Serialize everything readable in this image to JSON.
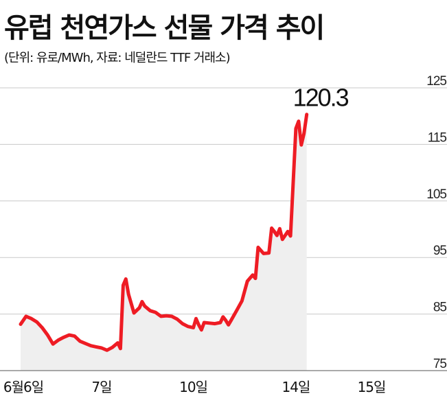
{
  "title": "유럽 천연가스 선물 가격 추이",
  "subtitle": "(단위: 유로/MWh, 자료: 네덜란드 TTF 거래소)",
  "chart_data": {
    "type": "area",
    "title": "유럽 천연가스 선물 가격 추이",
    "xlabel": "",
    "ylabel": "",
    "ylim": [
      75,
      125
    ],
    "yticks": [
      "125",
      "115",
      "105",
      "95",
      "85",
      "75"
    ],
    "grid": true,
    "x_labels": [
      "6월6일",
      "7일",
      "10일",
      "14일",
      "15일"
    ],
    "x_label_positions": [
      0,
      15,
      32,
      51,
      65
    ],
    "highlight_label": "120.3",
    "series": [
      {
        "color": "#ee1c24",
        "fill": "#efefef",
        "values": [
          {
            "x": 0,
            "y": 83.2
          },
          {
            "x": 1,
            "y": 84.6
          },
          {
            "x": 2,
            "y": 84.2
          },
          {
            "x": 3,
            "y": 83.6
          },
          {
            "x": 4,
            "y": 82.6
          },
          {
            "x": 5,
            "y": 81.3
          },
          {
            "x": 6,
            "y": 79.7
          },
          {
            "x": 7,
            "y": 80.4
          },
          {
            "x": 8,
            "y": 80.9
          },
          {
            "x": 9,
            "y": 81.3
          },
          {
            "x": 10,
            "y": 81.1
          },
          {
            "x": 11,
            "y": 80.2
          },
          {
            "x": 12,
            "y": 79.8
          },
          {
            "x": 13,
            "y": 79.4
          },
          {
            "x": 14,
            "y": 79.2
          },
          {
            "x": 15,
            "y": 79.0
          },
          {
            "x": 16,
            "y": 78.6
          },
          {
            "x": 17,
            "y": 79.1
          },
          {
            "x": 18,
            "y": 79.9
          },
          {
            "x": 18.5,
            "y": 78.9
          },
          {
            "x": 19,
            "y": 90.1
          },
          {
            "x": 19.5,
            "y": 91.2
          },
          {
            "x": 20,
            "y": 88.5
          },
          {
            "x": 21,
            "y": 85.2
          },
          {
            "x": 22,
            "y": 86.1
          },
          {
            "x": 22.5,
            "y": 87.2
          },
          {
            "x": 23,
            "y": 86.4
          },
          {
            "x": 24,
            "y": 85.6
          },
          {
            "x": 25,
            "y": 85.3
          },
          {
            "x": 26,
            "y": 84.6
          },
          {
            "x": 27,
            "y": 84.7
          },
          {
            "x": 28,
            "y": 84.6
          },
          {
            "x": 29,
            "y": 84.1
          },
          {
            "x": 30,
            "y": 83.3
          },
          {
            "x": 31,
            "y": 82.8
          },
          {
            "x": 32,
            "y": 82.6
          },
          {
            "x": 32.5,
            "y": 84.2
          },
          {
            "x": 33,
            "y": 83.1
          },
          {
            "x": 33.5,
            "y": 82.2
          },
          {
            "x": 34,
            "y": 83.5
          },
          {
            "x": 35,
            "y": 83.4
          },
          {
            "x": 36,
            "y": 83.3
          },
          {
            "x": 37,
            "y": 83.5
          },
          {
            "x": 37.5,
            "y": 84.5
          },
          {
            "x": 38,
            "y": 83.9
          },
          {
            "x": 38.5,
            "y": 83.1
          },
          {
            "x": 39,
            "y": 83.9
          },
          {
            "x": 40,
            "y": 85.6
          },
          {
            "x": 41,
            "y": 87.3
          },
          {
            "x": 42,
            "y": 90.8
          },
          {
            "x": 43,
            "y": 91.9
          },
          {
            "x": 43.5,
            "y": 91.3
          },
          {
            "x": 44,
            "y": 96.8
          },
          {
            "x": 45,
            "y": 95.7
          },
          {
            "x": 46,
            "y": 95.8
          },
          {
            "x": 46.5,
            "y": 100.2
          },
          {
            "x": 47,
            "y": 99.6
          },
          {
            "x": 47.5,
            "y": 98.9
          },
          {
            "x": 48,
            "y": 100.1
          },
          {
            "x": 48.5,
            "y": 98.2
          },
          {
            "x": 49,
            "y": 98.9
          },
          {
            "x": 49.5,
            "y": 99.6
          },
          {
            "x": 50,
            "y": 98.8
          },
          {
            "x": 51,
            "y": 117.8
          },
          {
            "x": 51.5,
            "y": 119.1
          },
          {
            "x": 52,
            "y": 114.9
          },
          {
            "x": 52.5,
            "y": 116.9
          },
          {
            "x": 53,
            "y": 120.3
          }
        ]
      }
    ]
  }
}
